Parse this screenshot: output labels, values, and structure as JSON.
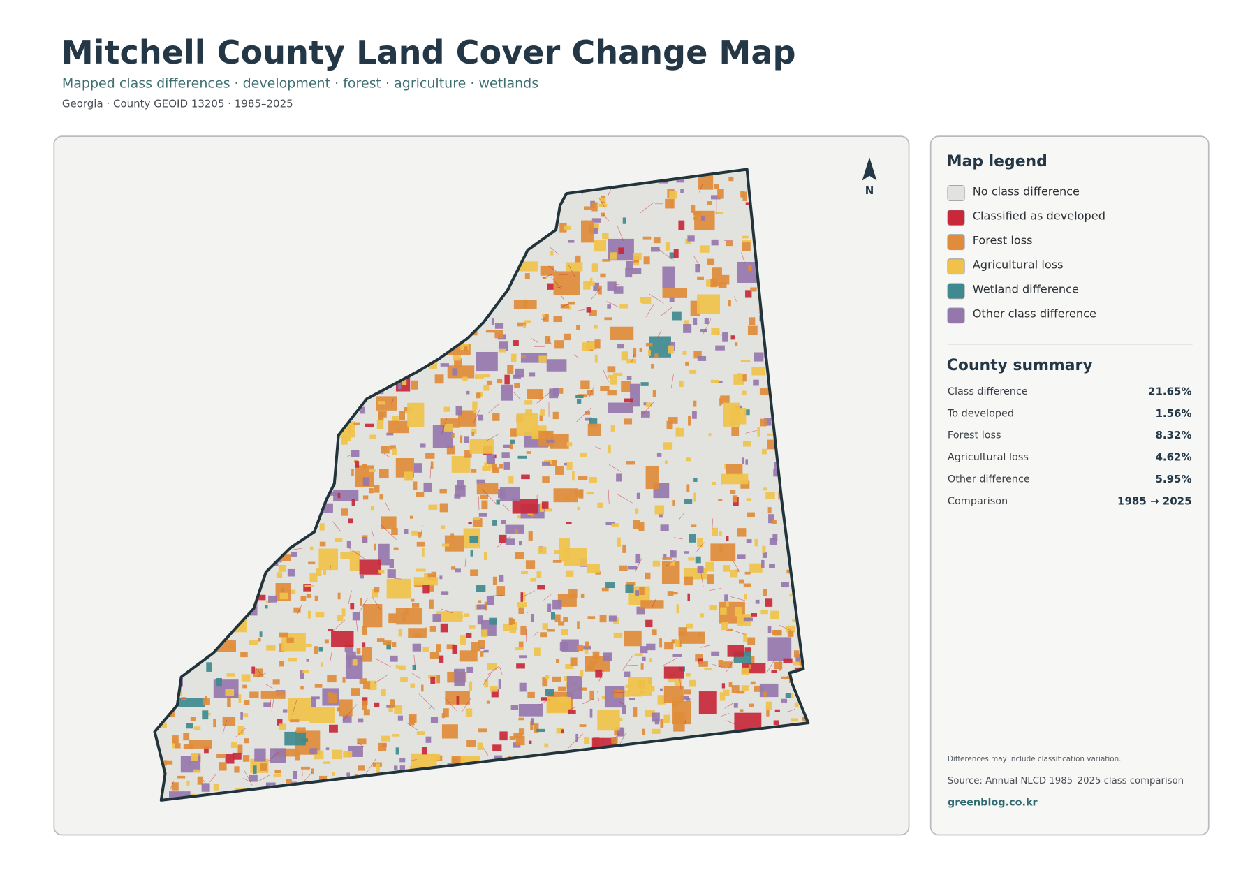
{
  "header": {
    "title": "Mitchell County Land Cover Change Map",
    "subtitle": "Mapped class differences · development · forest · agriculture · wetlands",
    "meta": "Georgia · County GEOID 13205 · 1985–2025"
  },
  "map": {
    "north_label": "N"
  },
  "legend": {
    "title": "Map legend",
    "items": [
      {
        "label": "No class difference",
        "color": "#e2e3df"
      },
      {
        "label": "Classified as developed",
        "color": "#c8283a"
      },
      {
        "label": "Forest loss",
        "color": "#e08c3a"
      },
      {
        "label": "Agricultural loss",
        "color": "#f0c24a"
      },
      {
        "label": "Wetland difference",
        "color": "#3f8a8e"
      },
      {
        "label": "Other class difference",
        "color": "#9677ad"
      }
    ]
  },
  "summary": {
    "title": "County summary",
    "rows": [
      {
        "label": "Class difference",
        "value": "21.65%"
      },
      {
        "label": "To developed",
        "value": "1.56%"
      },
      {
        "label": "Forest loss",
        "value": "8.32%"
      },
      {
        "label": "Agricultural loss",
        "value": "4.62%"
      },
      {
        "label": "Other difference",
        "value": "5.95%"
      },
      {
        "label": "Comparison",
        "value": "1985 → 2025"
      }
    ]
  },
  "footer": {
    "note": "Differences may include classification variation.",
    "source": "Source: Annual NLCD 1985–2025 class comparison",
    "credit": "greenblog.co.kr"
  }
}
